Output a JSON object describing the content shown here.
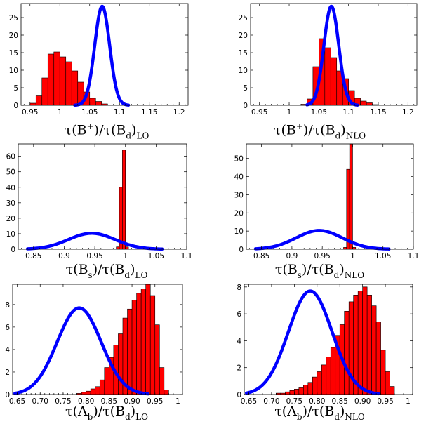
{
  "chart_data": [
    {
      "type": "bar",
      "panel": "top-left",
      "xlabel_parts": [
        "τ(B",
        "+",
        ")/τ(B",
        "d",
        ")",
        "LO"
      ],
      "xlim": [
        0.935,
        1.215
      ],
      "ylim": [
        0,
        29
      ],
      "xticks": [
        {
          "v": 0.95,
          "label": "0.95"
        },
        {
          "v": 1.0,
          "label": "1"
        },
        {
          "v": 1.05,
          "label": "1.05"
        },
        {
          "v": 1.1,
          "label": "1.1"
        },
        {
          "v": 1.15,
          "label": "1.15"
        },
        {
          "v": 1.2,
          "label": "1.2"
        }
      ],
      "yticks": [
        0,
        5,
        10,
        15,
        20,
        25
      ],
      "bin_width": 0.01,
      "bins": [
        {
          "x0": 0.95,
          "h": 0.6
        },
        {
          "x0": 0.96,
          "h": 2.7
        },
        {
          "x0": 0.97,
          "h": 7.8
        },
        {
          "x0": 0.98,
          "h": 14.6
        },
        {
          "x0": 0.99,
          "h": 15.2
        },
        {
          "x0": 1.0,
          "h": 13.8
        },
        {
          "x0": 1.01,
          "h": 12.4
        },
        {
          "x0": 1.02,
          "h": 9.8
        },
        {
          "x0": 1.03,
          "h": 6.6
        },
        {
          "x0": 1.04,
          "h": 3.8
        },
        {
          "x0": 1.05,
          "h": 2.0
        },
        {
          "x0": 1.06,
          "h": 1.1
        },
        {
          "x0": 1.07,
          "h": 0.4
        }
      ],
      "curve": {
        "mean": 1.071,
        "sigma": 0.0125,
        "peak": 28.2,
        "xmin": 1.025,
        "xmax": 1.115
      }
    },
    {
      "type": "bar",
      "panel": "top-right",
      "xlabel_parts": [
        "τ(B",
        "+",
        ")/τ(B",
        "d",
        ")",
        "NLO"
      ],
      "xlim": [
        0.935,
        1.215
      ],
      "ylim": [
        0,
        29
      ],
      "xticks": [
        {
          "v": 0.95,
          "label": "0.95"
        },
        {
          "v": 1.0,
          "label": "1"
        },
        {
          "v": 1.05,
          "label": "1.05"
        },
        {
          "v": 1.1,
          "label": "1.1"
        },
        {
          "v": 1.15,
          "label": "1.15"
        },
        {
          "v": 1.2,
          "label": "1.2"
        }
      ],
      "yticks": [
        0,
        5,
        10,
        15,
        20,
        25
      ],
      "bin_width": 0.01,
      "bins": [
        {
          "x0": 1.02,
          "h": 0.3
        },
        {
          "x0": 1.03,
          "h": 1.8
        },
        {
          "x0": 1.04,
          "h": 11.0
        },
        {
          "x0": 1.05,
          "h": 19.0
        },
        {
          "x0": 1.06,
          "h": 16.4
        },
        {
          "x0": 1.07,
          "h": 13.6
        },
        {
          "x0": 1.08,
          "h": 9.8
        },
        {
          "x0": 1.09,
          "h": 7.6
        },
        {
          "x0": 1.1,
          "h": 4.2
        },
        {
          "x0": 1.11,
          "h": 2.0
        },
        {
          "x0": 1.12,
          "h": 1.2
        },
        {
          "x0": 1.13,
          "h": 0.7
        },
        {
          "x0": 1.14,
          "h": 0.2
        }
      ],
      "curve": {
        "mean": 1.071,
        "sigma": 0.0125,
        "peak": 28.2,
        "xmin": 1.03,
        "xmax": 1.115
      }
    },
    {
      "type": "bar",
      "panel": "middle-left",
      "xlabel_parts": [
        "τ(B",
        "s",
        ")/τ(B",
        "d",
        ")",
        "LO"
      ],
      "xlim": [
        0.825,
        1.1
      ],
      "ylim": [
        0,
        68
      ],
      "xticks": [
        {
          "v": 0.85,
          "label": "0.85"
        },
        {
          "v": 0.9,
          "label": "0.9"
        },
        {
          "v": 0.95,
          "label": "0.95"
        },
        {
          "v": 1.0,
          "label": "1"
        },
        {
          "v": 1.05,
          "label": "1.05"
        },
        {
          "v": 1.1,
          "label": "1.1"
        }
      ],
      "yticks": [
        0,
        10,
        20,
        30,
        40,
        50,
        60
      ],
      "bin_width": 0.005,
      "bins": [
        {
          "x0": 0.985,
          "h": 1.5
        },
        {
          "x0": 0.99,
          "h": 40.0
        },
        {
          "x0": 0.995,
          "h": 64.0
        },
        {
          "x0": 1.0,
          "h": 1.5
        }
      ],
      "curve": {
        "mean": 0.945,
        "sigma": 0.038,
        "peak": 10.3,
        "xmin": 0.84,
        "xmax": 1.06
      }
    },
    {
      "type": "bar",
      "panel": "middle-right",
      "xlabel_parts": [
        "τ(B",
        "s",
        ")/τ(B",
        "d",
        ")",
        "NLO"
      ],
      "xlim": [
        0.825,
        1.1
      ],
      "ylim": [
        0,
        58
      ],
      "xticks": [
        {
          "v": 0.85,
          "label": "0.85"
        },
        {
          "v": 0.9,
          "label": "0.9"
        },
        {
          "v": 0.95,
          "label": "0.95"
        },
        {
          "v": 1.0,
          "label": "1"
        },
        {
          "v": 1.05,
          "label": "1.05"
        },
        {
          "v": 1.1,
          "label": "1.1"
        }
      ],
      "yticks": [
        0,
        10,
        20,
        30,
        40,
        50
      ],
      "bin_width": 0.005,
      "bins": [
        {
          "x0": 0.985,
          "h": 1.0
        },
        {
          "x0": 0.99,
          "h": 44.0
        },
        {
          "x0": 0.995,
          "h": 58.0
        },
        {
          "x0": 1.0,
          "h": 1.0
        }
      ],
      "curve": {
        "mean": 0.945,
        "sigma": 0.038,
        "peak": 10.3,
        "xmin": 0.84,
        "xmax": 1.06
      }
    },
    {
      "type": "bar",
      "panel": "bottom-left",
      "xlabel_parts": [
        "τ(Λ",
        "b",
        ")/τ(B",
        "d",
        ")",
        "LO"
      ],
      "xlim": [
        0.64,
        1.01
      ],
      "ylim": [
        0,
        9.8
      ],
      "xticks": [
        {
          "v": 0.65,
          "label": "0.65"
        },
        {
          "v": 0.7,
          "label": "0.70"
        },
        {
          "v": 0.75,
          "label": "0.75"
        },
        {
          "v": 0.8,
          "label": "0.80"
        },
        {
          "v": 0.85,
          "label": "0.85"
        },
        {
          "v": 0.9,
          "label": "0.90"
        },
        {
          "v": 0.95,
          "label": "0.95"
        },
        {
          "v": 1.0,
          "label": "1"
        }
      ],
      "yticks": [
        0,
        2,
        4,
        6,
        8
      ],
      "bin_width": 0.01,
      "bins": [
        {
          "x0": 0.78,
          "h": 0.1
        },
        {
          "x0": 0.79,
          "h": 0.2
        },
        {
          "x0": 0.8,
          "h": 0.3
        },
        {
          "x0": 0.81,
          "h": 0.5
        },
        {
          "x0": 0.82,
          "h": 0.7
        },
        {
          "x0": 0.83,
          "h": 1.3
        },
        {
          "x0": 0.84,
          "h": 2.4
        },
        {
          "x0": 0.85,
          "h": 3.3
        },
        {
          "x0": 0.86,
          "h": 4.4
        },
        {
          "x0": 0.87,
          "h": 5.4
        },
        {
          "x0": 0.88,
          "h": 6.8
        },
        {
          "x0": 0.89,
          "h": 7.6
        },
        {
          "x0": 0.9,
          "h": 8.4
        },
        {
          "x0": 0.91,
          "h": 9.0
        },
        {
          "x0": 0.92,
          "h": 9.4
        },
        {
          "x0": 0.93,
          "h": 9.8
        },
        {
          "x0": 0.94,
          "h": 8.8
        },
        {
          "x0": 0.95,
          "h": 6.2
        },
        {
          "x0": 0.96,
          "h": 2.4
        },
        {
          "x0": 0.97,
          "h": 0.4
        }
      ],
      "curve": {
        "mean": 0.785,
        "sigma": 0.048,
        "peak": 7.7,
        "xmin": 0.645,
        "xmax": 0.935
      }
    },
    {
      "type": "bar",
      "panel": "bottom-right",
      "xlabel_parts": [
        "τ(Λ",
        "b",
        ")/τ(B",
        "d",
        ")",
        "NLO"
      ],
      "xlim": [
        0.64,
        1.01
      ],
      "ylim": [
        0,
        8.2
      ],
      "xticks": [
        {
          "v": 0.65,
          "label": "0.65"
        },
        {
          "v": 0.7,
          "label": "0.70"
        },
        {
          "v": 0.75,
          "label": "0.75"
        },
        {
          "v": 0.8,
          "label": "0.80"
        },
        {
          "v": 0.85,
          "label": "0.85"
        },
        {
          "v": 0.9,
          "label": "0.90"
        },
        {
          "v": 0.95,
          "label": "0.95"
        },
        {
          "v": 1.0,
          "label": "1"
        }
      ],
      "yticks": [
        0,
        2,
        4,
        6,
        8
      ],
      "bin_width": 0.01,
      "bins": [
        {
          "x0": 0.71,
          "h": 0.1
        },
        {
          "x0": 0.72,
          "h": 0.1
        },
        {
          "x0": 0.73,
          "h": 0.2
        },
        {
          "x0": 0.74,
          "h": 0.3
        },
        {
          "x0": 0.75,
          "h": 0.4
        },
        {
          "x0": 0.76,
          "h": 0.5
        },
        {
          "x0": 0.77,
          "h": 0.7
        },
        {
          "x0": 0.78,
          "h": 0.9
        },
        {
          "x0": 0.79,
          "h": 1.3
        },
        {
          "x0": 0.8,
          "h": 1.7
        },
        {
          "x0": 0.81,
          "h": 2.2
        },
        {
          "x0": 0.82,
          "h": 2.8
        },
        {
          "x0": 0.83,
          "h": 3.5
        },
        {
          "x0": 0.84,
          "h": 4.4
        },
        {
          "x0": 0.85,
          "h": 5.2
        },
        {
          "x0": 0.86,
          "h": 6.2
        },
        {
          "x0": 0.87,
          "h": 6.9
        },
        {
          "x0": 0.88,
          "h": 7.4
        },
        {
          "x0": 0.89,
          "h": 7.7
        },
        {
          "x0": 0.9,
          "h": 8.0
        },
        {
          "x0": 0.91,
          "h": 7.4
        },
        {
          "x0": 0.92,
          "h": 6.6
        },
        {
          "x0": 0.93,
          "h": 5.4
        },
        {
          "x0": 0.94,
          "h": 3.3
        },
        {
          "x0": 0.95,
          "h": 1.7
        },
        {
          "x0": 0.96,
          "h": 0.6
        }
      ],
      "curve": {
        "mean": 0.785,
        "sigma": 0.048,
        "peak": 7.7,
        "xmin": 0.645,
        "xmax": 0.935
      }
    }
  ]
}
